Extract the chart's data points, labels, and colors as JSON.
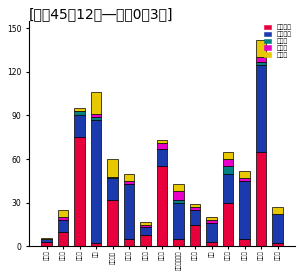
{
  "title": "[昭和45年12月―平成0幺3月]",
  "title_display": "[昭和45年12月―平成0幺3月]",
  "legend_labels": [
    "油の流出",
    "魚の浮上",
    "臭い水",
    "異常値",
    "その他"
  ],
  "colors": [
    "#e8003c",
    "#1a3aad",
    "#008080",
    "#e800c8",
    "#e8c800"
  ],
  "xtick_labels": [
    "久慈川",
    "那珂川",
    "利根川",
    "旧川",
    "渡良瀬川",
    "鬼怒川",
    "小貝川",
    "江戸川",
    "中川・綾瀬川",
    "霸ヶ浦",
    "矢川",
    "入間川",
    "多摩川",
    "相模川",
    "富士川"
  ],
  "oil": [
    3,
    10,
    75,
    2,
    32,
    5,
    8,
    55,
    5,
    15,
    3,
    30,
    5,
    65,
    2
  ],
  "fish": [
    2,
    8,
    15,
    85,
    15,
    38,
    5,
    12,
    25,
    10,
    13,
    20,
    40,
    60,
    20
  ],
  "smell": [
    0,
    0,
    3,
    2,
    1,
    0,
    0,
    0,
    2,
    0,
    0,
    5,
    0,
    2,
    0
  ],
  "abnormal": [
    0,
    2,
    0,
    2,
    0,
    2,
    2,
    4,
    6,
    2,
    2,
    5,
    2,
    3,
    0
  ],
  "other": [
    1,
    5,
    2,
    15,
    12,
    5,
    2,
    2,
    5,
    2,
    2,
    5,
    5,
    12,
    5
  ],
  "ylim": [
    0,
    155
  ],
  "yticks": [
    0,
    30,
    60,
    90,
    120,
    150
  ],
  "bar_width": 0.65,
  "background_color": "#ffffff",
  "bar_edge_color": "#000000",
  "bar_edge_width": 0.5
}
